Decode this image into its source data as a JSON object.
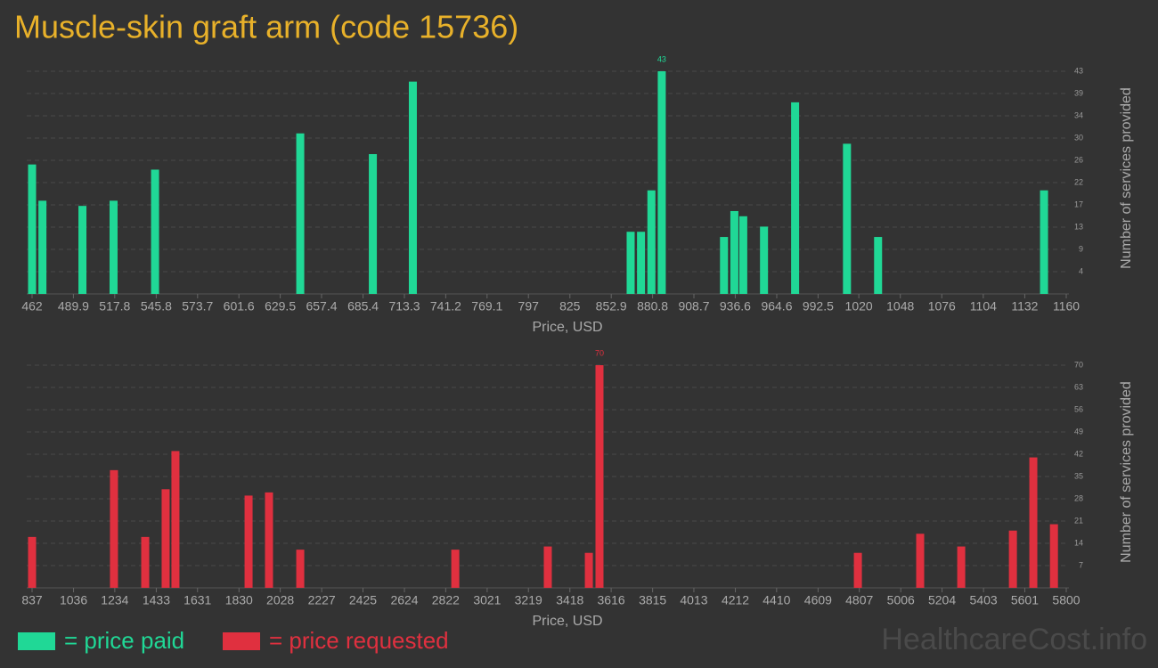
{
  "title": "Muscle-skin graft arm (code 15736)",
  "watermark": "HealthcareCost.info",
  "chart_data": [
    {
      "type": "bar",
      "x_label": "Price, USD",
      "y_label": "Number of services provided",
      "x": [
        462,
        469,
        496,
        517,
        545,
        643,
        692,
        719,
        866,
        873,
        880,
        887,
        929,
        936,
        942,
        956,
        977,
        1012,
        1033,
        1145
      ],
      "series": [
        {
          "name": "= price paid",
          "color": "#20d896",
          "values": [
            25,
            18,
            17,
            18,
            24,
            31,
            27,
            41,
            12,
            12,
            20,
            43,
            11,
            16,
            15,
            13,
            37,
            29,
            11,
            20
          ]
        }
      ],
      "xlim": [
        462,
        1160
      ],
      "xticks": [
        462,
        489.9,
        517.8,
        545.8,
        573.7,
        601.6,
        629.5,
        657.4,
        685.4,
        713.3,
        741.2,
        769.1,
        797,
        825,
        852.9,
        880.8,
        908.7,
        936.6,
        964.6,
        992.5,
        1020,
        1048,
        1076,
        1104,
        1132,
        1160
      ],
      "ylim": [
        0,
        43
      ],
      "yticks": [
        {
          "value": 4.3,
          "label": "4"
        },
        {
          "value": 8.6,
          "label": "9"
        },
        {
          "value": 12.9,
          "label": "13"
        },
        {
          "value": 17.2,
          "label": "17"
        },
        {
          "value": 21.5,
          "label": "22"
        },
        {
          "value": 25.8,
          "label": "26"
        },
        {
          "value": 30.1,
          "label": "30"
        },
        {
          "value": 34.4,
          "label": "34"
        },
        {
          "value": 38.7,
          "label": "39"
        },
        43
      ],
      "grid": true
    },
    {
      "type": "bar",
      "x_label": "Price, USD",
      "y_label": "Number of services provided",
      "x": [
        837,
        1230,
        1380,
        1478,
        1525,
        1876,
        1974,
        2124,
        2868,
        3312,
        3509,
        3560,
        4800,
        5099,
        5296,
        5544,
        5642,
        5741
      ],
      "series": [
        {
          "name": "= price requested",
          "color": "#e0303f",
          "values": [
            16,
            37,
            16,
            31,
            43,
            29,
            30,
            12,
            12,
            13,
            11,
            70,
            11,
            17,
            13,
            18,
            41,
            20
          ]
        }
      ],
      "xlim": [
        837,
        5800
      ],
      "xticks": [
        837,
        1036,
        1234,
        1433,
        1631,
        1830,
        2028,
        2227,
        2425,
        2624,
        2822,
        3021,
        3219,
        3418,
        3616,
        3815,
        4013,
        4212,
        4410,
        4609,
        4807,
        5006,
        5204,
        5403,
        5601,
        5800
      ],
      "ylim": [
        0,
        70
      ],
      "yticks": [
        7,
        14,
        21,
        28,
        35,
        42,
        49,
        56,
        63,
        70
      ],
      "grid": true
    }
  ]
}
